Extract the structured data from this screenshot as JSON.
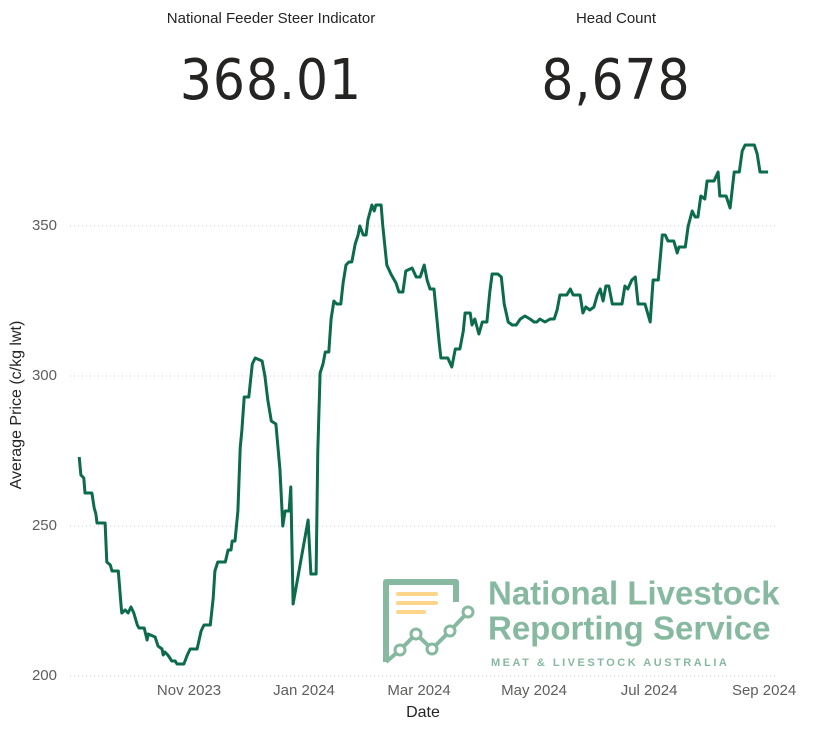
{
  "kpis": [
    {
      "title": "National Feeder Steer Indicator",
      "value": "368.01"
    },
    {
      "title": "Head Count",
      "value": "8,678"
    }
  ],
  "logo": {
    "line1": "National Livestock",
    "line2": "Reporting Service",
    "tagline": "MEAT & LIVESTOCK AUSTRALIA"
  },
  "chart_data": {
    "type": "line",
    "x_label": "Date",
    "y_label": "Average Price (c/kg lwt)",
    "color": "#0b6b4a",
    "grid": true,
    "xlim": [
      -0.07,
      12.19
    ],
    "xticks": [
      {
        "value": 2,
        "label": "Nov 2023"
      },
      {
        "value": 4,
        "label": "Jan 2024"
      },
      {
        "value": 6,
        "label": "Mar 2024"
      },
      {
        "value": 8,
        "label": "May 2024"
      },
      {
        "value": 10,
        "label": "Jul 2024"
      },
      {
        "value": 12,
        "label": "Sep 2024"
      }
    ],
    "ylim": [
      200,
      380
    ],
    "yticks": [
      200,
      250,
      300,
      350
    ],
    "x": [
      0.09,
      0.12,
      0.17,
      0.19,
      0.31,
      0.35,
      0.38,
      0.4,
      0.54,
      0.57,
      0.63,
      0.66,
      0.77,
      0.82,
      0.83,
      0.89,
      0.94,
      0.99,
      1.04,
      1.1,
      1.13,
      1.22,
      1.27,
      1.29,
      1.41,
      1.46,
      1.53,
      1.55,
      1.58,
      1.63,
      1.7,
      1.76,
      1.79,
      1.91,
      1.97,
      2.02,
      2.14,
      2.21,
      2.26,
      2.37,
      2.42,
      2.45,
      2.5,
      2.63,
      2.68,
      2.73,
      2.75,
      2.8,
      2.85,
      2.89,
      2.92,
      2.96,
      3.04,
      3.1,
      3.15,
      3.27,
      3.32,
      3.37,
      3.43,
      3.51,
      3.58,
      3.63,
      3.67,
      3.74,
      3.77,
      3.81,
      4.07,
      4.12,
      4.21,
      4.24,
      4.28,
      4.33,
      4.37,
      4.43,
      4.47,
      4.52,
      4.57,
      4.64,
      4.68,
      4.73,
      4.78,
      4.83,
      4.89,
      4.94,
      4.97,
      5.03,
      5.08,
      5.11,
      5.18,
      5.22,
      5.25,
      5.34,
      5.37,
      5.44,
      5.51,
      5.6,
      5.65,
      5.72,
      5.77,
      5.88,
      5.95,
      6.02,
      6.09,
      6.14,
      6.19,
      6.26,
      6.31,
      6.35,
      6.38,
      6.5,
      6.57,
      6.63,
      6.71,
      6.77,
      6.8,
      6.89,
      6.92,
      6.97,
      7.04,
      7.1,
      7.18,
      7.23,
      7.27,
      7.37,
      7.43,
      7.48,
      7.55,
      7.62,
      7.69,
      7.76,
      7.84,
      7.93,
      8.0,
      8.05,
      8.1,
      8.19,
      8.28,
      8.35,
      8.4,
      8.45,
      8.57,
      8.63,
      8.68,
      8.8,
      8.85,
      8.9,
      8.97,
      9.04,
      9.1,
      9.15,
      9.2,
      9.25,
      9.3,
      9.36,
      9.41,
      9.53,
      9.58,
      9.63,
      9.7,
      9.76,
      9.81,
      9.93,
      10.02,
      10.07,
      10.16,
      10.23,
      10.28,
      10.33,
      10.43,
      10.49,
      10.52,
      10.63,
      10.68,
      10.75,
      10.8,
      10.85,
      10.9,
      10.97,
      11.01,
      11.13,
      11.2,
      11.23,
      11.34,
      11.41,
      11.48,
      11.57,
      11.62,
      11.67,
      11.83,
      11.88,
      11.93,
      12.07
    ],
    "values": [
      273,
      267,
      266,
      261,
      261,
      256,
      254,
      251,
      251,
      238,
      237,
      235,
      235,
      223,
      221,
      222,
      221,
      223,
      221,
      217,
      216,
      216,
      212,
      214,
      213,
      210,
      209,
      207,
      208,
      207,
      205,
      205,
      204,
      204,
      207,
      209,
      209,
      215,
      217,
      217,
      226,
      235,
      238,
      238,
      242,
      242,
      245,
      245,
      255,
      276,
      282,
      293,
      293,
      304,
      306,
      305,
      300,
      292,
      285,
      284,
      269,
      250,
      255,
      255,
      263,
      224,
      252,
      234,
      234,
      275,
      301,
      304,
      308,
      308,
      319,
      325,
      324,
      324,
      331,
      337,
      338,
      338,
      344,
      347,
      350,
      347,
      347,
      352,
      357,
      355,
      357,
      357,
      350,
      337,
      334,
      331,
      328,
      328,
      335,
      336,
      333,
      333,
      337,
      332,
      329,
      329,
      319,
      311,
      306,
      306,
      303,
      309,
      309,
      315,
      321,
      321,
      317,
      319,
      314,
      318,
      318,
      328,
      334,
      334,
      333,
      324,
      318,
      317,
      317,
      319,
      320,
      319,
      318,
      318,
      319,
      318,
      319,
      319,
      322,
      327,
      327,
      329,
      327,
      327,
      321,
      323,
      322,
      323,
      327,
      329,
      325,
      330,
      330,
      324,
      324,
      324,
      330,
      329,
      332,
      333,
      324,
      324,
      318,
      332,
      332,
      347,
      347,
      345,
      345,
      341,
      343,
      343,
      350,
      355,
      353,
      353,
      360,
      359,
      365,
      365,
      368,
      360,
      360,
      356,
      368,
      368,
      375,
      377,
      377,
      374,
      368,
      368
    ]
  }
}
